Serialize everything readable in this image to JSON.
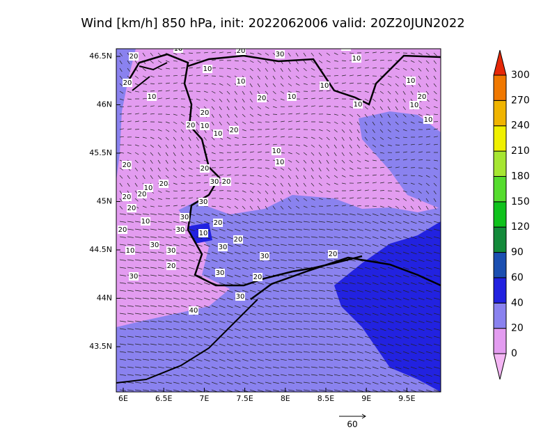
{
  "title": "Wind [km/h] 850 hPa, init: 2022062006 valid: 20Z20JUN2022",
  "map": {
    "lon_labels": [
      "6E",
      "6.5E",
      "7E",
      "7.5E",
      "8E",
      "8.5E",
      "9E",
      "9.5E"
    ],
    "lat_labels": [
      "46.5N",
      "46N",
      "45.5N",
      "45N",
      "44.5N",
      "44N",
      "43.5N"
    ],
    "contour_labels": [
      "20",
      "10",
      "20",
      "10",
      "20",
      "30",
      "10",
      "10",
      "20",
      "10",
      "10",
      "10",
      "10",
      "10",
      "20",
      "10",
      "10",
      "10",
      "20",
      "20",
      "10",
      "10",
      "20",
      "10",
      "10",
      "20",
      "20",
      "30",
      "20",
      "10",
      "20",
      "20",
      "20",
      "20",
      "30",
      "30",
      "10",
      "20",
      "30",
      "10",
      "20",
      "10",
      "30",
      "30",
      "20",
      "30",
      "20",
      "30",
      "30",
      "20",
      "30",
      "20",
      "30",
      "40"
    ]
  },
  "colorbar": {
    "labels": [
      "0",
      "20",
      "40",
      "60",
      "90",
      "120",
      "150",
      "180",
      "210",
      "240",
      "270",
      "300"
    ],
    "colors": [
      "#f4b6f4",
      "#e39cf0",
      "#8a82ef",
      "#2222e0",
      "#1b4fb1",
      "#138a3a",
      "#0fc21c",
      "#55dc2e",
      "#a6e632",
      "#f0f000",
      "#f0b400",
      "#f07800",
      "#e62808"
    ]
  },
  "vector_key": {
    "label": "60"
  }
}
